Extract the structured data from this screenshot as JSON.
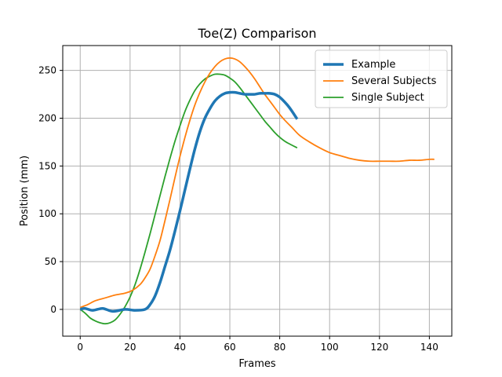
{
  "chart_data": {
    "type": "line",
    "title": "Toe(Z) Comparison",
    "xlabel": "Frames",
    "ylabel": "Position (mm)",
    "xlim": [
      -7,
      149
    ],
    "ylim": [
      -28,
      276
    ],
    "xticks": [
      0,
      20,
      40,
      60,
      80,
      100,
      120,
      140
    ],
    "yticks": [
      0,
      50,
      100,
      150,
      200,
      250
    ],
    "grid": true,
    "legend_position": "top-right",
    "series": [
      {
        "name": "Example",
        "color": "#1f77b4",
        "line_width": 3.5,
        "x": [
          0,
          2,
          5,
          9,
          13,
          18,
          22,
          26,
          28,
          30,
          32,
          34,
          36,
          38,
          40,
          42,
          44,
          46,
          48,
          50,
          52,
          54,
          56,
          58,
          60,
          62,
          64,
          66,
          68,
          70,
          72,
          74,
          76,
          78,
          80,
          83,
          85,
          87
        ],
        "y": [
          0,
          1,
          -1,
          1,
          -2,
          0,
          -1,
          0,
          5,
          14,
          28,
          45,
          62,
          82,
          103,
          125,
          147,
          168,
          186,
          200,
          210,
          218,
          223,
          226,
          227,
          227,
          226,
          225,
          225,
          225,
          226,
          226,
          226,
          225,
          222,
          214,
          207,
          199
        ]
      },
      {
        "name": "Several Subjects",
        "color": "#ff7f0e",
        "line_width": 1.8,
        "x": [
          0,
          3,
          6,
          10,
          14,
          18,
          21,
          24,
          26,
          28,
          30,
          32,
          34,
          36,
          38,
          40,
          42,
          44,
          46,
          48,
          50,
          52,
          54,
          56,
          58,
          60,
          62,
          64,
          66,
          68,
          70,
          72,
          74,
          76,
          78,
          80,
          82,
          85,
          88,
          92,
          96,
          100,
          104,
          108,
          112,
          116,
          120,
          124,
          128,
          132,
          136,
          140,
          142
        ],
        "y": [
          2,
          5,
          9,
          12,
          15,
          17,
          20,
          26,
          33,
          42,
          56,
          72,
          93,
          115,
          138,
          160,
          180,
          198,
          214,
          227,
          238,
          247,
          254,
          259,
          262,
          263,
          262,
          259,
          254,
          248,
          241,
          233,
          225,
          218,
          211,
          204,
          198,
          190,
          182,
          175,
          169,
          164,
          161,
          158,
          156,
          155,
          155,
          155,
          155,
          156,
          156,
          157,
          157
        ]
      },
      {
        "name": "Single Subject",
        "color": "#2ca02c",
        "line_width": 1.8,
        "x": [
          0,
          2,
          4,
          6,
          8,
          10,
          12,
          14,
          16,
          18,
          20,
          22,
          24,
          26,
          28,
          30,
          32,
          34,
          36,
          38,
          40,
          42,
          44,
          46,
          48,
          50,
          52,
          54,
          56,
          58,
          60,
          62,
          64,
          66,
          68,
          70,
          72,
          74,
          76,
          78,
          80,
          82,
          84,
          87
        ],
        "y": [
          0,
          -4,
          -9,
          -12,
          -14,
          -15,
          -14,
          -11,
          -5,
          3,
          13,
          26,
          42,
          60,
          79,
          99,
          119,
          139,
          158,
          176,
          192,
          207,
          219,
          229,
          236,
          241,
          244,
          246,
          246,
          245,
          242,
          238,
          232,
          225,
          218,
          211,
          204,
          197,
          191,
          185,
          180,
          176,
          173,
          169
        ]
      }
    ]
  }
}
